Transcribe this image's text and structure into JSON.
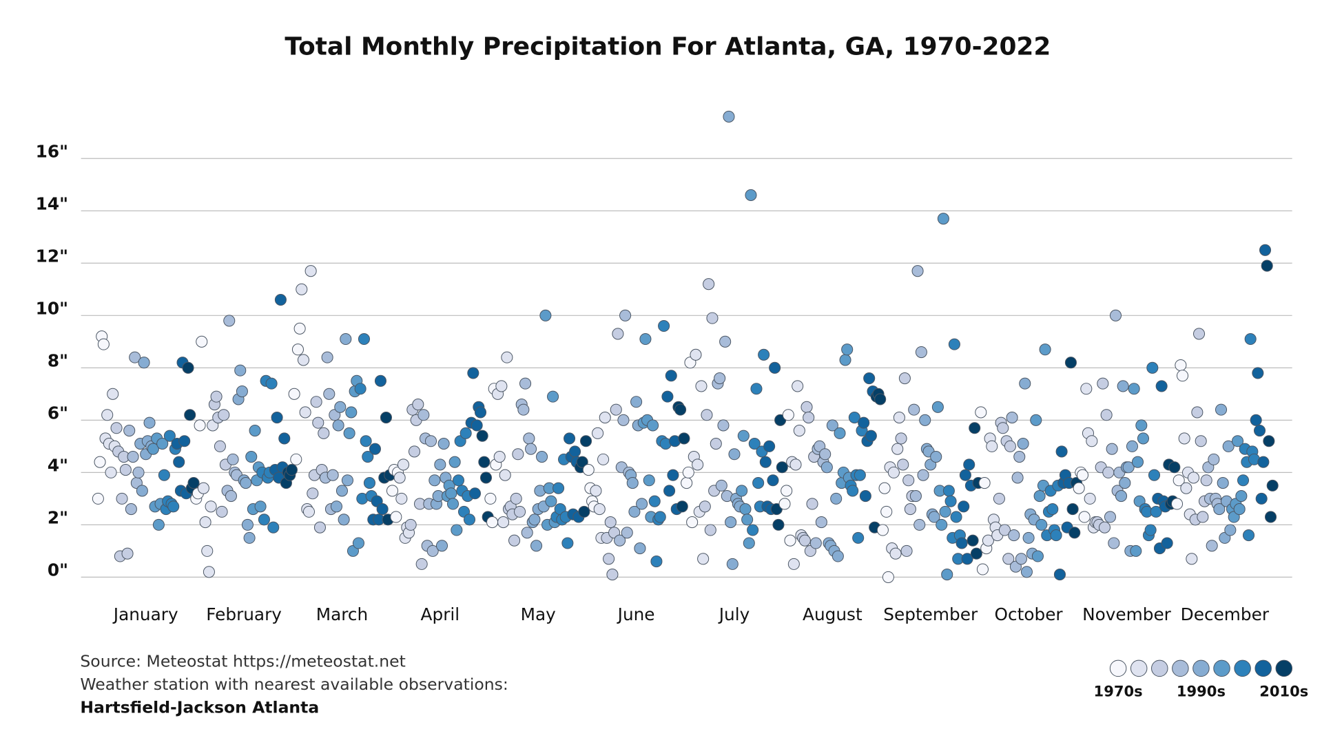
{
  "chart_data": {
    "type": "strip",
    "title": "Total Monthly Precipitation For Atlanta, GA, 1970-2022",
    "categories": [
      "January",
      "February",
      "March",
      "April",
      "May",
      "June",
      "July",
      "August",
      "September",
      "October",
      "November",
      "December"
    ],
    "xlim": [
      1970,
      2022
    ],
    "ylim": [
      -1,
      18.5
    ],
    "yticks": [
      {
        "value": 0,
        "label": "0\""
      },
      {
        "value": 2,
        "label": "2\""
      },
      {
        "value": 4,
        "label": "4\""
      },
      {
        "value": 6,
        "label": "6\""
      },
      {
        "value": 8,
        "label": "8\""
      },
      {
        "value": 10,
        "label": "10\""
      },
      {
        "value": 12,
        "label": "12\""
      },
      {
        "value": 14,
        "label": "14\""
      },
      {
        "value": 16,
        "label": "16\""
      }
    ],
    "grid": true,
    "values": [
      [
        3.0,
        4.4,
        9.2,
        8.9,
        5.3,
        6.2,
        5.1,
        4.0,
        7.0,
        5.0,
        5.7,
        4.8,
        0.8,
        3.0,
        4.6,
        4.1,
        0.9,
        5.6,
        2.6,
        4.6,
        8.4,
        3.6,
        4.0,
        5.1,
        3.3,
        8.2,
        4.7,
        5.2,
        5.9,
        5.0,
        4.9,
        2.7,
        5.3,
        2.0,
        2.8,
        5.1,
        3.9,
        2.6,
        2.9,
        5.4,
        2.8,
        2.7,
        4.9,
        5.1,
        4.4,
        3.3,
        8.2,
        5.2,
        3.2,
        8.0,
        6.2,
        3.4,
        3.6
      ],
      [
        3.0,
        3.2,
        5.8,
        9.0,
        3.4,
        2.1,
        1.0,
        0.2,
        2.7,
        5.8,
        6.6,
        6.9,
        6.1,
        5.0,
        2.5,
        6.2,
        4.3,
        3.3,
        9.8,
        3.1,
        4.5,
        4.0,
        3.9,
        6.8,
        7.9,
        7.1,
        3.7,
        3.6,
        2.0,
        1.5,
        4.6,
        2.6,
        5.6,
        3.7,
        4.2,
        2.7,
        4.0,
        2.2,
        7.5,
        3.8,
        4.0,
        7.4,
        1.9,
        4.1,
        6.1,
        3.8,
        10.6,
        4.2,
        5.3,
        3.6,
        4.0,
        3.9,
        4.1
      ],
      [
        7.0,
        4.5,
        8.7,
        9.5,
        11.0,
        8.3,
        6.3,
        2.6,
        2.5,
        11.7,
        3.2,
        3.9,
        6.7,
        5.9,
        1.9,
        4.1,
        5.5,
        3.8,
        8.4,
        7.0,
        2.6,
        3.9,
        6.2,
        2.7,
        5.8,
        6.5,
        3.3,
        2.2,
        9.1,
        3.7,
        5.5,
        6.3,
        1.0,
        7.1,
        7.5,
        1.3,
        7.2,
        3.0,
        9.1,
        5.2,
        4.6,
        3.6,
        3.1,
        2.2,
        4.9,
        2.9,
        2.2,
        7.5,
        2.6,
        3.8,
        6.1,
        2.2,
        3.9
      ],
      [
        3.3,
        4.1,
        2.3,
        4.0,
        3.8,
        3.0,
        4.3,
        1.5,
        1.9,
        1.7,
        2.0,
        6.4,
        4.8,
        6.0,
        6.6,
        2.8,
        0.5,
        6.2,
        5.3,
        1.2,
        2.8,
        5.2,
        1.0,
        3.7,
        2.8,
        3.1,
        4.3,
        1.2,
        5.1,
        3.8,
        3.1,
        3.5,
        3.2,
        2.8,
        4.4,
        1.8,
        3.7,
        5.2,
        3.3,
        2.5,
        5.5,
        3.1,
        2.2,
        5.9,
        7.8,
        3.2,
        5.8,
        6.5,
        6.3,
        5.4,
        4.4,
        3.8,
        2.3
      ],
      [
        3.0,
        2.1,
        7.2,
        4.3,
        7.0,
        4.6,
        7.3,
        2.1,
        3.9,
        8.4,
        2.6,
        2.7,
        2.4,
        1.4,
        3.0,
        4.7,
        2.5,
        6.6,
        6.4,
        7.4,
        1.7,
        5.3,
        4.9,
        2.1,
        2.2,
        1.2,
        2.6,
        3.3,
        4.6,
        2.7,
        10.0,
        2.0,
        3.4,
        2.9,
        6.9,
        2.1,
        2.3,
        3.4,
        2.6,
        2.2,
        4.5,
        2.3,
        1.3,
        5.3,
        4.6,
        2.4,
        4.8,
        4.4,
        2.3,
        4.2,
        4.4,
        2.5,
        5.2
      ],
      [
        4.1,
        3.4,
        2.9,
        2.7,
        3.3,
        5.5,
        2.6,
        1.5,
        4.5,
        6.1,
        1.5,
        0.7,
        2.1,
        0.1,
        1.7,
        6.4,
        9.3,
        1.4,
        4.2,
        6.0,
        10.0,
        1.7,
        4.0,
        3.9,
        3.6,
        2.5,
        6.7,
        5.8,
        1.1,
        2.8,
        5.9,
        9.1,
        6.0,
        3.7,
        2.3,
        5.8,
        2.9,
        0.6,
        2.2,
        2.3,
        5.2,
        9.6,
        5.1,
        6.9,
        3.3,
        7.7,
        3.9,
        5.2,
        2.6,
        6.5,
        6.4,
        2.7,
        5.3
      ],
      [
        3.6,
        4.0,
        8.2,
        2.1,
        4.6,
        8.5,
        4.3,
        2.5,
        7.3,
        0.7,
        2.7,
        6.2,
        11.2,
        1.8,
        9.9,
        3.3,
        5.1,
        7.4,
        7.6,
        3.5,
        5.8,
        9.0,
        3.1,
        17.6,
        2.1,
        0.5,
        4.7,
        3.0,
        2.8,
        2.7,
        3.3,
        5.4,
        2.6,
        2.2,
        1.3,
        14.6,
        1.8,
        5.1,
        7.2,
        3.6,
        2.7,
        4.8,
        8.5,
        4.4,
        2.7,
        5.0,
        2.6,
        3.7,
        8.0,
        2.6,
        2.0,
        6.0,
        4.2
      ],
      [
        2.8,
        3.3,
        6.2,
        1.4,
        4.4,
        0.5,
        4.3,
        7.3,
        5.6,
        1.6,
        1.5,
        1.4,
        6.5,
        6.1,
        1.0,
        2.8,
        4.6,
        1.3,
        4.9,
        5.0,
        2.1,
        4.4,
        4.7,
        4.2,
        1.3,
        1.2,
        5.8,
        1.0,
        3.0,
        0.8,
        5.5,
        3.6,
        4.0,
        8.3,
        8.7,
        3.8,
        3.5,
        3.3,
        6.1,
        3.9,
        1.5,
        3.9,
        5.6,
        5.9,
        3.1,
        5.2,
        7.6,
        5.4,
        7.1,
        1.9,
        6.9,
        7.0,
        6.8
      ],
      [
        1.8,
        3.4,
        2.5,
        0.0,
        4.2,
        1.1,
        4.0,
        0.9,
        4.9,
        6.1,
        5.3,
        4.3,
        7.6,
        1.0,
        3.7,
        2.6,
        3.1,
        6.4,
        3.1,
        11.7,
        2.0,
        8.6,
        3.9,
        6.0,
        4.9,
        4.8,
        4.3,
        2.4,
        2.3,
        4.6,
        6.5,
        3.3,
        2.0,
        13.7,
        2.5,
        0.1,
        3.3,
        2.9,
        1.5,
        8.9,
        2.3,
        0.7,
        1.6,
        1.3,
        2.7,
        3.9,
        0.7,
        4.3,
        3.5,
        1.4,
        5.7,
        0.9,
        3.6
      ],
      [
        6.3,
        0.3,
        3.6,
        1.1,
        1.4,
        5.3,
        5.0,
        2.2,
        1.9,
        1.6,
        3.0,
        5.9,
        5.7,
        1.8,
        5.2,
        0.7,
        5.0,
        6.1,
        1.6,
        0.4,
        3.8,
        4.6,
        0.7,
        5.1,
        7.4,
        0.2,
        1.5,
        2.4,
        0.9,
        2.2,
        6.0,
        0.8,
        3.1,
        2.0,
        3.5,
        8.7,
        1.6,
        2.5,
        3.3,
        2.6,
        1.8,
        1.6,
        3.5,
        0.1,
        4.8,
        3.6,
        3.9,
        1.9,
        3.6,
        8.2,
        2.6,
        1.7,
        3.6
      ],
      [
        3.4,
        4.0,
        3.9,
        2.3,
        7.2,
        5.5,
        3.0,
        5.2,
        1.9,
        2.1,
        2.1,
        2.0,
        4.2,
        7.4,
        1.9,
        6.2,
        4.0,
        2.3,
        4.9,
        1.3,
        10.0,
        3.3,
        4.0,
        3.1,
        7.3,
        3.6,
        4.2,
        4.2,
        1.0,
        5.0,
        7.2,
        1.0,
        4.4,
        2.9,
        5.8,
        5.3,
        2.6,
        2.5,
        1.6,
        1.8,
        8.0,
        3.9,
        2.5,
        3.0,
        1.1,
        7.3,
        2.9,
        2.7,
        1.3,
        4.3,
        2.8,
        2.9,
        4.2
      ],
      [
        2.8,
        3.7,
        8.1,
        7.7,
        5.3,
        3.4,
        4.0,
        2.4,
        0.7,
        3.8,
        2.2,
        6.3,
        9.3,
        5.2,
        2.3,
        2.9,
        3.7,
        4.2,
        3.0,
        1.2,
        4.5,
        3.0,
        2.8,
        2.6,
        6.4,
        3.6,
        1.5,
        2.9,
        5.0,
        1.8,
        2.6,
        2.3,
        2.8,
        5.2,
        2.6,
        3.1,
        3.7,
        4.9,
        4.4,
        1.6,
        9.1,
        4.8,
        4.5,
        6.0,
        7.8,
        5.6,
        3.0,
        4.4,
        12.5,
        11.9,
        5.2,
        2.3,
        3.5
      ]
    ],
    "colors": [
      "#f6f7fc",
      "#dfe3f0",
      "#c5cde2",
      "#a8bcd9",
      "#86acd2",
      "#5c9bc9",
      "#2d81ba",
      "#12629c",
      "#053f66"
    ],
    "legend_labels": [
      "1970s",
      "1990s",
      "2010s"
    ],
    "source": [
      "Source: Meteostat https://meteostat.net",
      "Weather station with nearest available observations:",
      "Hartsfield-Jackson Atlanta"
    ]
  }
}
